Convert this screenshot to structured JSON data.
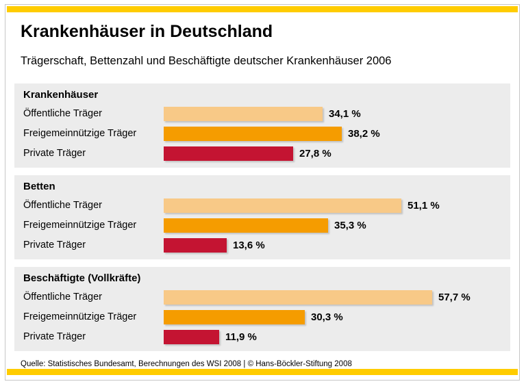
{
  "colors": {
    "band_yellow": "#ffcc00",
    "group_background": "#ececec",
    "frame_border": "#c6c6c6",
    "bar_light": "#f8c987",
    "bar_orange": "#f59c00",
    "bar_red": "#c41432"
  },
  "header": {
    "title": "Krankenhäuser in Deutschland",
    "subtitle": "Trägerschaft, Bettenzahl und Beschäftigte deutscher Krankenhäuser 2006"
  },
  "footer": {
    "source_line": "Quelle: Statistisches Bundesamt,  Berechnungen des WSI 2008 | © Hans-Böckler-Stiftung 2008"
  },
  "chart_data": {
    "type": "bar",
    "orientation": "horizontal",
    "value_unit": "percent",
    "legend": "none",
    "grid": false,
    "categories": [
      "Öffentliche Träger",
      "Freigemeinnützige Träger",
      "Private Träger"
    ],
    "groups": [
      {
        "title": "Krankenhäuser",
        "bars": [
          {
            "label": "Öffentliche Träger",
            "value": 34.1,
            "display": "34,1 %",
            "color_key": "bar_light"
          },
          {
            "label": "Freigemeinnützige Träger",
            "value": 38.2,
            "display": "38,2 %",
            "color_key": "bar_orange"
          },
          {
            "label": "Private Träger",
            "value": 27.8,
            "display": "27,8 %",
            "color_key": "bar_red"
          }
        ]
      },
      {
        "title": "Betten",
        "bars": [
          {
            "label": "Öffentliche Träger",
            "value": 51.1,
            "display": "51,1 %",
            "color_key": "bar_light"
          },
          {
            "label": "Freigemeinnützige Träger",
            "value": 35.3,
            "display": "35,3 %",
            "color_key": "bar_orange"
          },
          {
            "label": "Private Träger",
            "value": 13.6,
            "display": "13,6 %",
            "color_key": "bar_red"
          }
        ]
      },
      {
        "title": "Beschäftigte (Vollkräfte)",
        "bars": [
          {
            "label": "Öffentliche Träger",
            "value": 57.7,
            "display": "57,7 %",
            "color_key": "bar_light"
          },
          {
            "label": "Freigemeinnützige Träger",
            "value": 30.3,
            "display": "30,3 %",
            "color_key": "bar_orange"
          },
          {
            "label": "Private Träger",
            "value": 11.9,
            "display": "11,9 %",
            "color_key": "bar_red"
          }
        ]
      }
    ]
  }
}
